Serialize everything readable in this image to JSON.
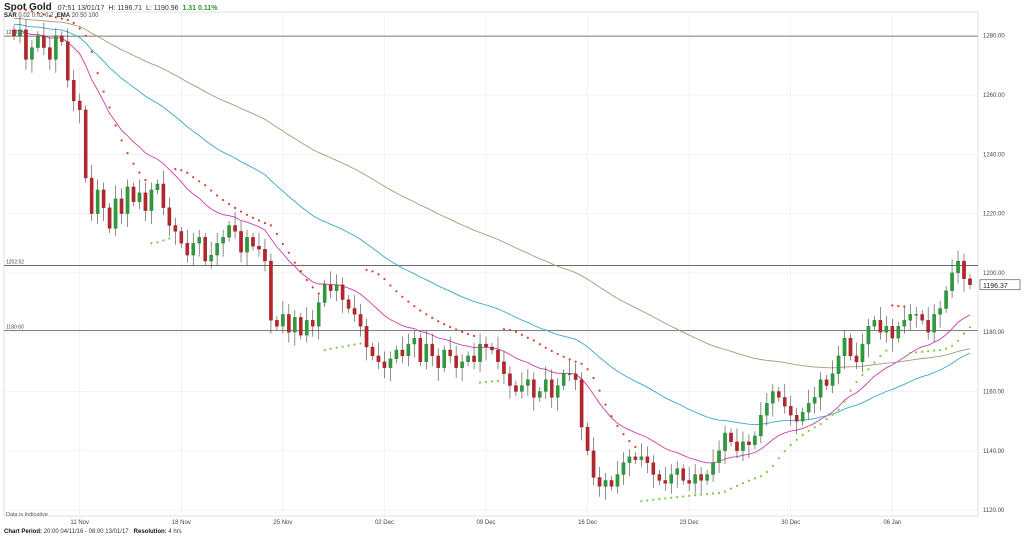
{
  "header": {
    "symbol": "Spot Gold",
    "time": "07:51 13/01/17",
    "high": "H: 1196.71",
    "low": "L: 1190.96",
    "change": "1.31 0.11%"
  },
  "indicators": {
    "sar_label": "SAR",
    "sar_params": "0.02 0.02 0.2",
    "ema_label": "EMA",
    "ema_params": "20 50 100"
  },
  "footer": {
    "period_label": "Chart Period:",
    "period_value": "20:00 04/11/16 - 08:00 13/01/17",
    "resolution_label": "Resolution:",
    "resolution_value": "4 hrs"
  },
  "note": "Data is Indicative",
  "chart_data": {
    "type": "line",
    "subtype": "candlestick",
    "ylim": [
      1118,
      1288
    ],
    "y_ticks": [
      1120,
      1140,
      1160,
      1180,
      1200,
      1220,
      1240,
      1260,
      1280
    ],
    "y_tick_labels": [
      "1120.00",
      "1140.00",
      "1160.00",
      "1180.00",
      "1200.00",
      "1220.00",
      "1240.00",
      "1260.00",
      "1280.00"
    ],
    "x_tick_labels": [
      "11 Nov",
      "18 Nov",
      "25 Nov",
      "02 Dec",
      "09 Dec",
      "16 Dec",
      "23 Dec",
      "30 Dec",
      "06 Jan"
    ],
    "x_tick_index": [
      11,
      28,
      45,
      62,
      79,
      96,
      113,
      130,
      147
    ],
    "current_price": "1196.37",
    "horizontal_lines": [
      {
        "value": 1279.85,
        "label": "1279.85"
      },
      {
        "value": 1202.52,
        "label": "1202.52"
      },
      {
        "value": 1180.6,
        "label": "1180.60"
      }
    ],
    "closes": [
      1280,
      1282,
      1272,
      1276,
      1280,
      1276,
      1272,
      1280,
      1278,
      1265,
      1258,
      1255,
      1232,
      1220,
      1228,
      1222,
      1215,
      1225,
      1220,
      1229,
      1224,
      1227,
      1221,
      1228,
      1230,
      1222,
      1216,
      1214,
      1210,
      1206,
      1210,
      1212,
      1204,
      1206,
      1210,
      1212,
      1216,
      1214,
      1207,
      1212,
      1209,
      1208,
      1204,
      1184,
      1182,
      1186,
      1180,
      1185,
      1179,
      1184,
      1182,
      1190,
      1196,
      1194,
      1196,
      1191,
      1188,
      1186,
      1182,
      1175,
      1172,
      1170,
      1168,
      1171,
      1174,
      1172,
      1176,
      1178,
      1170,
      1176,
      1172,
      1168,
      1174,
      1172,
      1168,
      1170,
      1172,
      1170,
      1176,
      1175,
      1174,
      1170,
      1166,
      1162,
      1160,
      1162,
      1164,
      1158,
      1160,
      1164,
      1158,
      1162,
      1166,
      1166,
      1164,
      1148,
      1140,
      1131,
      1128,
      1130,
      1128,
      1132,
      1136,
      1138,
      1137,
      1138,
      1136,
      1132,
      1130,
      1129,
      1132,
      1134,
      1130,
      1129,
      1132,
      1130,
      1132,
      1136,
      1140,
      1146,
      1143,
      1140,
      1143,
      1142,
      1145,
      1152,
      1156,
      1160,
      1158,
      1155,
      1152,
      1150,
      1153,
      1156,
      1158,
      1164,
      1162,
      1166,
      1172,
      1178,
      1172,
      1170,
      1176,
      1182,
      1184,
      1180,
      1182,
      1178,
      1182,
      1184,
      1186,
      1186,
      1184,
      1180,
      1186,
      1188,
      1194,
      1200,
      1204,
      1198,
      1196
    ]
  }
}
